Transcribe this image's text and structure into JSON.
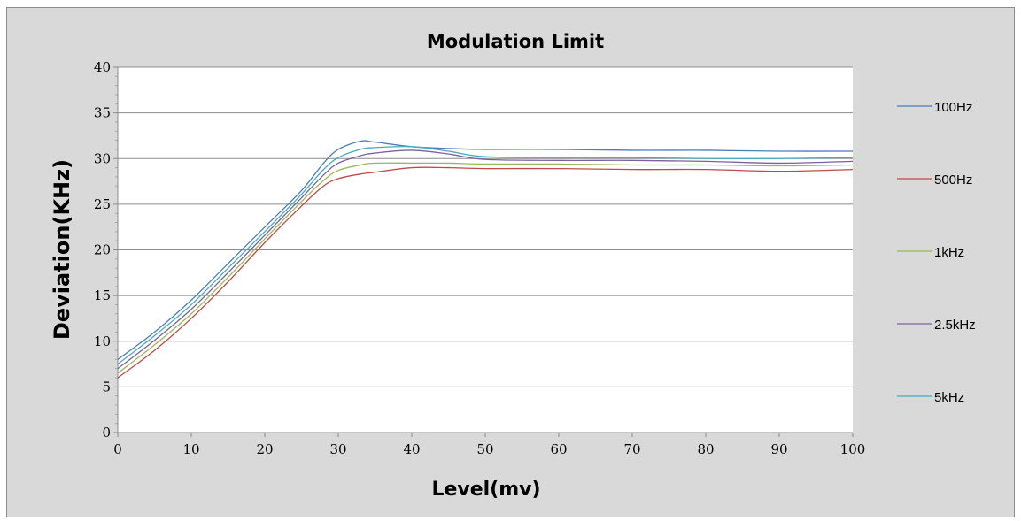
{
  "chart_data": {
    "type": "line",
    "title": "Modulation Limit",
    "xlabel": "Level(mv)",
    "ylabel": "Deviation(KHz)",
    "xlim": [
      0,
      100
    ],
    "ylim": [
      0,
      40
    ],
    "xticks": [
      0,
      10,
      20,
      30,
      40,
      50,
      60,
      70,
      80,
      90,
      100
    ],
    "yticks": [
      0,
      5,
      10,
      15,
      20,
      25,
      30,
      35,
      40
    ],
    "grid": "horizontal",
    "legend_position": "right",
    "x": [
      0,
      5,
      10,
      15,
      20,
      25,
      28,
      30,
      33,
      35,
      40,
      45,
      50,
      60,
      70,
      80,
      90,
      100
    ],
    "series": [
      {
        "name": "100Hz",
        "color": "#4a7ebb",
        "values": [
          8.0,
          11.0,
          14.5,
          18.5,
          22.5,
          26.5,
          29.5,
          31.0,
          31.9,
          31.8,
          31.3,
          31.1,
          31.0,
          31.0,
          30.9,
          30.9,
          30.8,
          30.8
        ]
      },
      {
        "name": "500Hz",
        "color": "#be4b48",
        "values": [
          6.0,
          9.0,
          12.5,
          16.5,
          20.8,
          24.8,
          27.0,
          27.8,
          28.3,
          28.5,
          29.0,
          29.0,
          28.9,
          28.9,
          28.8,
          28.8,
          28.6,
          28.8
        ]
      },
      {
        "name": "1kHz",
        "color": "#98b954",
        "values": [
          6.5,
          9.6,
          13.0,
          17.0,
          21.2,
          25.3,
          27.6,
          28.7,
          29.3,
          29.5,
          29.5,
          29.5,
          29.4,
          29.4,
          29.3,
          29.3,
          29.2,
          29.3
        ]
      },
      {
        "name": "2.5kHz",
        "color": "#7d60a0",
        "values": [
          7.0,
          10.1,
          13.5,
          17.5,
          21.6,
          25.7,
          28.2,
          29.5,
          30.3,
          30.6,
          30.9,
          30.5,
          29.9,
          29.8,
          29.8,
          29.7,
          29.5,
          29.7
        ]
      },
      {
        "name": "5kHz",
        "color": "#46aac5",
        "values": [
          7.5,
          10.6,
          14.0,
          18.0,
          22.0,
          26.1,
          28.8,
          30.1,
          31.0,
          31.2,
          31.3,
          30.8,
          30.2,
          30.1,
          30.1,
          30.0,
          30.0,
          30.1
        ]
      }
    ]
  }
}
